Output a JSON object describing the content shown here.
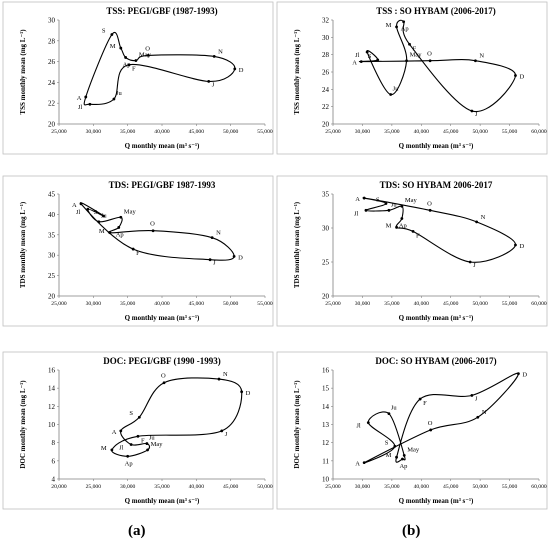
{
  "figure": {
    "captions": [
      "(a)",
      "(b)"
    ],
    "colors": {
      "line": "#000000",
      "panel_border": "#bfbfbf",
      "background": "#ffffff"
    }
  },
  "chart_data": [
    {
      "id": "tss-pegi",
      "type": "line",
      "title": "TSS: PEGI/GBF (1987-1993)",
      "xlabel": "Q monthly mean (m³ s⁻¹)",
      "ylabel": "TSS monthly mean (mg L⁻¹)",
      "xlim": [
        25000,
        55000
      ],
      "ylim": [
        20,
        30
      ],
      "xticks": [
        25000,
        30000,
        35000,
        40000,
        45000,
        50000,
        55000
      ],
      "xtick_labels": [
        "25,000",
        "30,000",
        "35,000",
        "40,000",
        "45,000",
        "50,000",
        "55,000"
      ],
      "yticks": [
        20,
        22,
        24,
        26,
        28,
        30
      ],
      "grid": false,
      "points": [
        {
          "label": "A",
          "x": 28900,
          "y": 22.6
        },
        {
          "label": "S",
          "x": 32700,
          "y": 28.6
        },
        {
          "label": "M",
          "x": 34000,
          "y": 27.3
        },
        {
          "label": "Ap",
          "x": 34700,
          "y": 26.4
        },
        {
          "label": "May",
          "x": 36200,
          "y": 26.1
        },
        {
          "label": "O",
          "x": 38000,
          "y": 26.6
        },
        {
          "label": "N",
          "x": 47600,
          "y": 26.5
        },
        {
          "label": "D",
          "x": 50600,
          "y": 25.3
        },
        {
          "label": "J",
          "x": 46800,
          "y": 24.1
        },
        {
          "label": "F",
          "x": 35200,
          "y": 25.7
        },
        {
          "label": "Ju",
          "x": 33000,
          "y": 22.4
        },
        {
          "label": "Jl",
          "x": 29500,
          "y": 21.9
        }
      ]
    },
    {
      "id": "tss-hybam",
      "type": "line",
      "title": "TSS : SO HYBAM (2006-2017)",
      "xlabel": "Q monthly mean (m³ s⁻¹)",
      "ylabel": "TSS monthly mean (mg L⁻¹)",
      "xlim": [
        25000,
        60000
      ],
      "ylim": [
        20,
        32
      ],
      "xticks": [
        25000,
        30000,
        35000,
        40000,
        45000,
        50000,
        55000,
        60000
      ],
      "xtick_labels": [
        "25,000",
        "30,000",
        "35,000",
        "40,000",
        "45,000",
        "50,000",
        "55,000",
        "60,000"
      ],
      "yticks": [
        20,
        22,
        24,
        26,
        28,
        30,
        32
      ],
      "grid": false,
      "points": [
        {
          "label": "A",
          "x": 29800,
          "y": 27.2
        },
        {
          "label": "S",
          "x": 32600,
          "y": 27.4
        },
        {
          "label": "Jl",
          "x": 30800,
          "y": 28.3
        },
        {
          "label": "Ju",
          "x": 34800,
          "y": 23.4
        },
        {
          "label": "May",
          "x": 37500,
          "y": 27.3
        },
        {
          "label": "M",
          "x": 35800,
          "y": 31.2
        },
        {
          "label": "Ap",
          "x": 37000,
          "y": 31.8
        },
        {
          "label": "F",
          "x": 38000,
          "y": 29.2
        },
        {
          "label": "J",
          "x": 48600,
          "y": 21.5
        },
        {
          "label": "D",
          "x": 56000,
          "y": 25.6
        },
        {
          "label": "N",
          "x": 49200,
          "y": 27.3
        },
        {
          "label": "O",
          "x": 41500,
          "y": 27.3
        }
      ]
    },
    {
      "id": "tds-pegi",
      "type": "line",
      "title": "TDS: PEGI/GBF 1987-1993",
      "xlabel": "Q monthly mean (m³ s⁻¹)",
      "ylabel": "TDS monthly mean (mg L⁻¹)",
      "xlim": [
        25000,
        55000
      ],
      "ylim": [
        20,
        45
      ],
      "xticks": [
        25000,
        30000,
        35000,
        40000,
        45000,
        50000,
        55000
      ],
      "xtick_labels": [
        "25,000",
        "30,000",
        "35,000",
        "40,000",
        "45,000",
        "50,000",
        "55,000"
      ],
      "yticks": [
        20,
        25,
        30,
        35,
        40,
        45
      ],
      "grid": false,
      "points": [
        {
          "label": "A",
          "x": 28200,
          "y": 42.6
        },
        {
          "label": "S",
          "x": 31500,
          "y": 39.6
        },
        {
          "label": "Jl",
          "x": 29200,
          "y": 41.3
        },
        {
          "label": "Ju",
          "x": 30800,
          "y": 38.2
        },
        {
          "label": "May",
          "x": 34000,
          "y": 39.3
        },
        {
          "label": "Ap",
          "x": 33700,
          "y": 36.8
        },
        {
          "label": "M",
          "x": 32400,
          "y": 35.5
        },
        {
          "label": "O",
          "x": 38700,
          "y": 36.0
        },
        {
          "label": "N",
          "x": 47300,
          "y": 34.3
        },
        {
          "label": "D",
          "x": 50500,
          "y": 29.7
        },
        {
          "label": "J",
          "x": 47000,
          "y": 28.9
        },
        {
          "label": "F",
          "x": 35800,
          "y": 31.5
        }
      ]
    },
    {
      "id": "tds-hybam",
      "type": "line",
      "title": "TDS: SO HYBAM 2006-2017",
      "xlabel": "Q monthly mean (m³ s⁻¹)",
      "ylabel": "TDS monthly mean (mg L⁻¹)",
      "xlim": [
        25000,
        60000
      ],
      "ylim": [
        20,
        35
      ],
      "xticks": [
        25000,
        30000,
        35000,
        40000,
        45000,
        50000,
        55000,
        60000
      ],
      "xtick_labels": [
        "25,000",
        "30,000",
        "35,000",
        "40,000",
        "45,000",
        "50,000",
        "55,000",
        "60,000"
      ],
      "yticks": [
        20,
        25,
        30,
        35
      ],
      "grid": false,
      "points": [
        {
          "label": "A",
          "x": 30300,
          "y": 34.4
        },
        {
          "label": "S",
          "x": 34000,
          "y": 33.6
        },
        {
          "label": "Jl",
          "x": 30600,
          "y": 32.6
        },
        {
          "label": "Ju",
          "x": 34500,
          "y": 32.6
        },
        {
          "label": "May",
          "x": 36700,
          "y": 33.2
        },
        {
          "label": "Ap",
          "x": 36700,
          "y": 31.4
        },
        {
          "label": "M",
          "x": 35800,
          "y": 30.1
        },
        {
          "label": "F",
          "x": 38600,
          "y": 29.5
        },
        {
          "label": "J",
          "x": 48300,
          "y": 25.0
        },
        {
          "label": "D",
          "x": 56000,
          "y": 27.5
        },
        {
          "label": "N",
          "x": 49400,
          "y": 30.9
        },
        {
          "label": "O",
          "x": 41500,
          "y": 32.6
        }
      ]
    },
    {
      "id": "doc-pegi",
      "type": "line",
      "title": "DOC: PEGI/GBF (1990 -1993)",
      "xlabel": "Q monthly mean (m³ s⁻¹)",
      "ylabel": "DOC monthly mean (mg L⁻¹)",
      "xlim": [
        20000,
        50000
      ],
      "ylim": [
        4,
        16
      ],
      "xticks": [
        20000,
        25000,
        30000,
        35000,
        40000,
        45000,
        50000
      ],
      "xtick_labels": [
        "20,000",
        "25,000",
        "30,000",
        "35,000",
        "40,000",
        "45,000",
        "50,000"
      ],
      "yticks": [
        4,
        6,
        8,
        10,
        12,
        14,
        16
      ],
      "grid": false,
      "points": [
        {
          "label": "A",
          "x": 29000,
          "y": 9.3
        },
        {
          "label": "S",
          "x": 31700,
          "y": 10.8
        },
        {
          "label": "O",
          "x": 35300,
          "y": 14.6
        },
        {
          "label": "N",
          "x": 43300,
          "y": 15.0
        },
        {
          "label": "D",
          "x": 46600,
          "y": 13.6
        },
        {
          "label": "J",
          "x": 43700,
          "y": 9.3
        },
        {
          "label": "F",
          "x": 31500,
          "y": 8.7
        },
        {
          "label": "M",
          "x": 27700,
          "y": 7.2
        },
        {
          "label": "Ap",
          "x": 30000,
          "y": 6.5
        },
        {
          "label": "May",
          "x": 32900,
          "y": 7.2
        },
        {
          "label": "Ju",
          "x": 32800,
          "y": 7.9
        },
        {
          "label": "Jl",
          "x": 30500,
          "y": 7.8
        }
      ]
    },
    {
      "id": "doc-hybam",
      "type": "line",
      "title": "DOC: SO HYBAM (2006-2017)",
      "xlabel": "Q monthly mean (m³ s⁻¹)",
      "ylabel": "DOC monthly mean (mg L⁻¹)",
      "xlim": [
        25000,
        60000
      ],
      "ylim": [
        10,
        16
      ],
      "xticks": [
        25000,
        30000,
        35000,
        40000,
        45000,
        50000,
        55000,
        60000
      ],
      "xtick_labels": [
        "25,000",
        "30,000",
        "35,000",
        "40,000",
        "45,000",
        "50,000",
        "55,000",
        "60,000"
      ],
      "yticks": [
        10,
        11,
        12,
        13,
        14,
        15,
        16
      ],
      "grid": false,
      "points": [
        {
          "label": "A",
          "x": 30300,
          "y": 10.9
        },
        {
          "label": "O",
          "x": 41600,
          "y": 12.7
        },
        {
          "label": "N",
          "x": 49600,
          "y": 13.4
        },
        {
          "label": "D",
          "x": 56500,
          "y": 15.8
        },
        {
          "label": "J",
          "x": 48600,
          "y": 14.6
        },
        {
          "label": "F",
          "x": 39800,
          "y": 14.4
        },
        {
          "label": "M",
          "x": 35800,
          "y": 11.2
        },
        {
          "label": "Ap",
          "x": 36800,
          "y": 11.1
        },
        {
          "label": "May",
          "x": 37100,
          "y": 11.3
        },
        {
          "label": "Ju",
          "x": 34500,
          "y": 13.6
        },
        {
          "label": "Jl",
          "x": 31000,
          "y": 13.1
        },
        {
          "label": "S",
          "x": 35500,
          "y": 11.8
        }
      ]
    }
  ]
}
